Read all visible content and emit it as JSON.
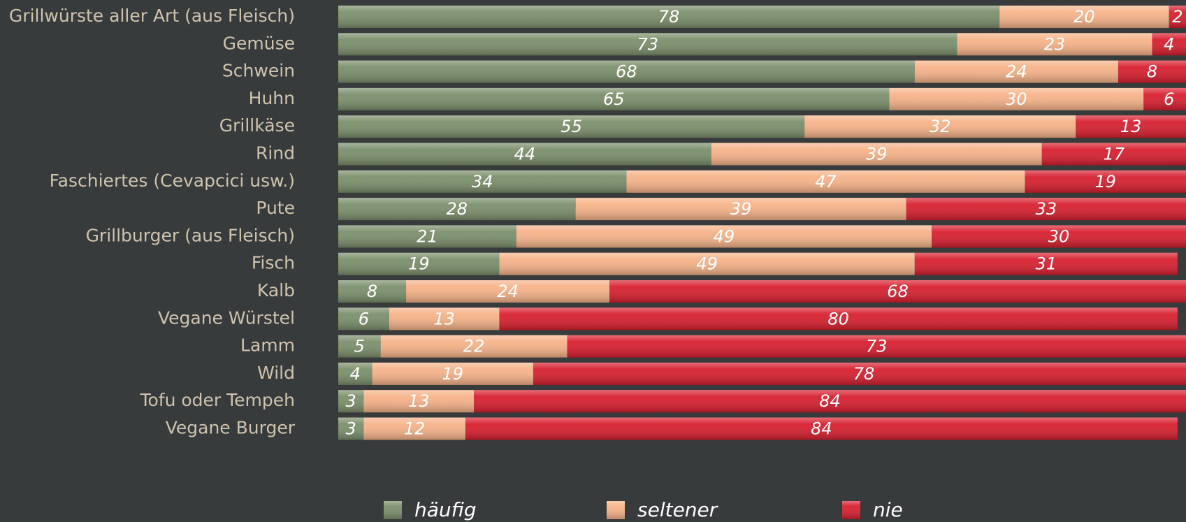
{
  "chart_data": {
    "type": "stacked-bar-horizontal",
    "categories": [
      "Grillwürste aller Art (aus Fleisch)",
      "Gemüse",
      "Schwein",
      "Huhn",
      "Grillkäse",
      "Rind",
      "Faschiertes (Cevapcici usw.)",
      "Pute",
      "Grillburger (aus Fleisch)",
      "Fisch",
      "Kalb",
      "Vegane Würstel",
      "Lamm",
      "Wild",
      "Tofu oder Tempeh",
      "Vegane Burger"
    ],
    "series": [
      {
        "name": "häufig",
        "color": "#7b8f6b",
        "values": [
          78,
          73,
          68,
          65,
          55,
          44,
          34,
          28,
          21,
          19,
          8,
          6,
          5,
          4,
          3,
          3
        ]
      },
      {
        "name": "seltener",
        "color": "#f6b389",
        "values": [
          20,
          23,
          24,
          30,
          32,
          39,
          47,
          39,
          49,
          49,
          24,
          13,
          22,
          19,
          13,
          12
        ]
      },
      {
        "name": "nie",
        "color": "#d81f2f",
        "values": [
          2,
          4,
          8,
          6,
          13,
          17,
          19,
          33,
          30,
          31,
          68,
          80,
          73,
          78,
          84,
          84
        ]
      }
    ],
    "xlim": [
      0,
      100
    ],
    "legend": "bottom"
  }
}
